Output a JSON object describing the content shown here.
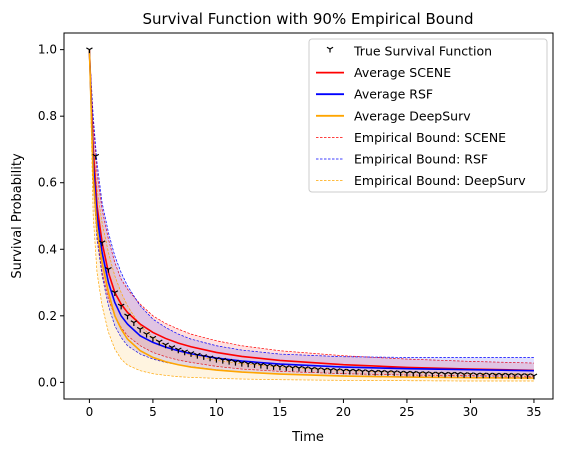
{
  "chart_data": {
    "type": "line",
    "title": "Survival Function with 90% Empirical Bound",
    "xlabel": "Time",
    "ylabel": "Survival Probability",
    "xlim": [
      -2,
      36.5
    ],
    "ylim": [
      -0.05,
      1.05
    ],
    "x_ticks": [
      0,
      5,
      10,
      15,
      20,
      25,
      30,
      35
    ],
    "y_ticks": [
      0.0,
      0.2,
      0.4,
      0.6,
      0.8,
      1.0
    ],
    "x_tick_labels": [
      "0",
      "5",
      "10",
      "15",
      "20",
      "25",
      "30",
      "35"
    ],
    "y_tick_labels": [
      "0.0",
      "0.2",
      "0.4",
      "0.6",
      "0.8",
      "1.0"
    ],
    "grid": false,
    "legend_position": "top-right",
    "series": [
      {
        "name": "True Survival Function",
        "kind": "markers",
        "marker": "tri_down",
        "color": "#000000",
        "x": [
          0,
          0.5,
          1,
          1.5,
          2,
          2.5,
          3,
          3.5,
          4,
          4.5,
          5,
          5.5,
          6,
          6.5,
          7,
          7.5,
          8,
          8.5,
          9,
          9.5,
          10,
          10.5,
          11,
          11.5,
          12,
          12.5,
          13,
          13.5,
          14,
          14.5,
          15,
          15.5,
          16,
          16.5,
          17,
          17.5,
          18,
          18.5,
          19,
          19.5,
          20,
          20.5,
          21,
          21.5,
          22,
          22.5,
          23,
          23.5,
          24,
          24.5,
          25,
          25.5,
          26,
          26.5,
          27,
          27.5,
          28,
          28.5,
          29,
          29.5,
          30,
          30.5,
          31,
          31.5,
          32,
          32.5,
          33,
          33.5,
          34,
          34.5,
          35
        ],
        "y": [
          1.0,
          0.68,
          0.42,
          0.34,
          0.27,
          0.23,
          0.2,
          0.18,
          0.16,
          0.145,
          0.133,
          0.122,
          0.113,
          0.105,
          0.098,
          0.092,
          0.087,
          0.082,
          0.078,
          0.074,
          0.07,
          0.067,
          0.064,
          0.061,
          0.058,
          0.056,
          0.054,
          0.052,
          0.05,
          0.048,
          0.047,
          0.045,
          0.044,
          0.043,
          0.042,
          0.04,
          0.039,
          0.038,
          0.037,
          0.036,
          0.035,
          0.034,
          0.034,
          0.033,
          0.032,
          0.031,
          0.031,
          0.03,
          0.03,
          0.029,
          0.028,
          0.028,
          0.027,
          0.027,
          0.026,
          0.026,
          0.025,
          0.025,
          0.025,
          0.024,
          0.024,
          0.023,
          0.023,
          0.023,
          0.022,
          0.022,
          0.022,
          0.021,
          0.021,
          0.021,
          0.02
        ]
      },
      {
        "name": "Average SCENE",
        "kind": "line",
        "color": "#ff0000",
        "x": [
          0,
          0.3,
          0.6,
          1,
          1.5,
          2,
          2.5,
          3,
          4,
          5,
          6,
          7,
          8,
          10,
          12,
          15,
          20,
          25,
          30,
          35
        ],
        "y": [
          1.0,
          0.7,
          0.53,
          0.42,
          0.33,
          0.27,
          0.235,
          0.21,
          0.175,
          0.15,
          0.132,
          0.118,
          0.107,
          0.09,
          0.078,
          0.066,
          0.053,
          0.045,
          0.04,
          0.036
        ]
      },
      {
        "name": "Average RSF",
        "kind": "line",
        "color": "#0000ff",
        "x": [
          0,
          0.3,
          0.6,
          1,
          1.5,
          2,
          2.5,
          3,
          4,
          5,
          6,
          7,
          8,
          10,
          12,
          15,
          20,
          25,
          30,
          35
        ],
        "y": [
          1.0,
          0.66,
          0.5,
          0.39,
          0.3,
          0.24,
          0.2,
          0.175,
          0.14,
          0.12,
          0.106,
          0.095,
          0.086,
          0.073,
          0.064,
          0.055,
          0.046,
          0.041,
          0.038,
          0.035
        ]
      },
      {
        "name": "Average DeepSurv",
        "kind": "line",
        "color": "#ffa500",
        "x": [
          0,
          0.3,
          0.6,
          1,
          1.5,
          2,
          2.5,
          3,
          4,
          5,
          6,
          7,
          8,
          10,
          12,
          15,
          20,
          25,
          30,
          35
        ],
        "y": [
          1.0,
          0.62,
          0.46,
          0.36,
          0.27,
          0.2,
          0.16,
          0.13,
          0.095,
          0.075,
          0.062,
          0.053,
          0.046,
          0.037,
          0.031,
          0.025,
          0.019,
          0.016,
          0.014,
          0.013
        ]
      },
      {
        "name": "Empirical Bound: SCENE",
        "kind": "band",
        "color": "#ff0000",
        "x": [
          0,
          0.3,
          0.6,
          1,
          1.5,
          2,
          2.5,
          3,
          4,
          5,
          6,
          7,
          8,
          10,
          12,
          15,
          20,
          25,
          30,
          35
        ],
        "lower": [
          1.0,
          0.62,
          0.44,
          0.33,
          0.25,
          0.2,
          0.165,
          0.14,
          0.11,
          0.09,
          0.077,
          0.067,
          0.06,
          0.048,
          0.04,
          0.033,
          0.026,
          0.022,
          0.02,
          0.018
        ],
        "upper": [
          1.0,
          0.78,
          0.63,
          0.52,
          0.43,
          0.36,
          0.31,
          0.28,
          0.235,
          0.2,
          0.177,
          0.16,
          0.145,
          0.125,
          0.11,
          0.095,
          0.08,
          0.07,
          0.063,
          0.058
        ]
      },
      {
        "name": "Empirical Bound: RSF",
        "kind": "band",
        "color": "#0000ff",
        "x": [
          0,
          0.3,
          0.6,
          1,
          1.5,
          2,
          2.5,
          3,
          4,
          5,
          6,
          7,
          8,
          10,
          12,
          15,
          20,
          25,
          30,
          35
        ],
        "lower": [
          1.0,
          0.6,
          0.43,
          0.32,
          0.23,
          0.17,
          0.135,
          0.11,
          0.085,
          0.07,
          0.06,
          0.053,
          0.047,
          0.038,
          0.031,
          0.025,
          0.02,
          0.017,
          0.016,
          0.015
        ],
        "upper": [
          1.0,
          0.8,
          0.66,
          0.54,
          0.45,
          0.38,
          0.33,
          0.29,
          0.23,
          0.19,
          0.165,
          0.145,
          0.13,
          0.11,
          0.097,
          0.085,
          0.077,
          0.075,
          0.075,
          0.075
        ]
      },
      {
        "name": "Empirical Bound: DeepSurv",
        "kind": "band",
        "color": "#ffa500",
        "x": [
          0,
          0.3,
          0.6,
          1,
          1.5,
          2,
          2.5,
          3,
          4,
          5,
          6,
          7,
          8,
          10,
          12,
          15,
          20,
          25,
          30,
          35
        ],
        "lower": [
          1.0,
          0.5,
          0.33,
          0.23,
          0.15,
          0.1,
          0.07,
          0.052,
          0.035,
          0.026,
          0.021,
          0.017,
          0.015,
          0.012,
          0.01,
          0.008,
          0.006,
          0.005,
          0.004,
          0.004
        ],
        "upper": [
          1.0,
          0.72,
          0.58,
          0.48,
          0.39,
          0.32,
          0.27,
          0.23,
          0.17,
          0.135,
          0.11,
          0.094,
          0.082,
          0.066,
          0.056,
          0.046,
          0.036,
          0.03,
          0.027,
          0.025
        ]
      }
    ]
  }
}
